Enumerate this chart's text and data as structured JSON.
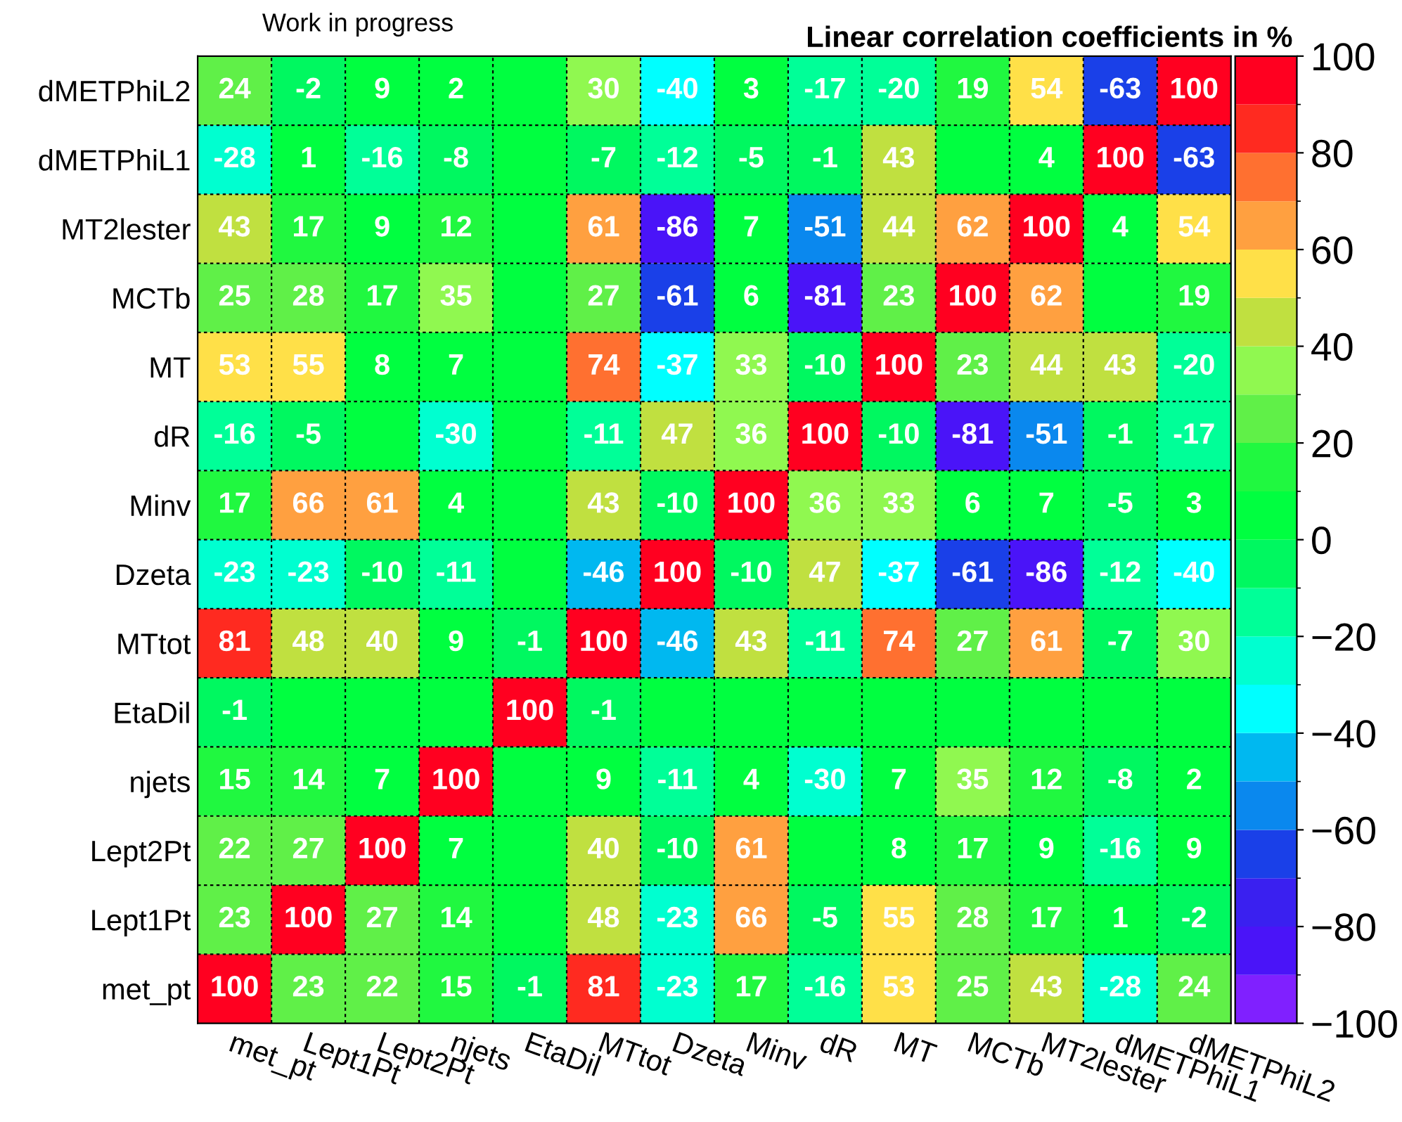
{
  "chart_data": {
    "type": "heatmap",
    "title": "Linear correlation coefficients in %",
    "annotations": [
      "Work in progress"
    ],
    "categories": [
      "met_pt",
      "Lept1Pt",
      "Lept2Pt",
      "njets",
      "EtaDil",
      "MTtot",
      "Dzeta",
      "Minv",
      "dR",
      "MT",
      "MCTb",
      "MT2lester",
      "dMETPhiL1",
      "dMETPhiL2"
    ],
    "y_categories": [
      "dMETPhiL2",
      "dMETPhiL1",
      "MT2lester",
      "MCTb",
      "MT",
      "dR",
      "Minv",
      "Dzeta",
      "MTtot",
      "EtaDil",
      "njets",
      "Lept2Pt",
      "Lept1Pt",
      "met_pt"
    ],
    "cells": [
      [
        24,
        -2,
        9,
        2,
        0,
        30,
        -40,
        3,
        -17,
        -20,
        19,
        54,
        -63,
        100
      ],
      [
        -28,
        1,
        -16,
        -8,
        0,
        -7,
        -12,
        -5,
        -1,
        43,
        0,
        4,
        100,
        -63
      ],
      [
        43,
        17,
        9,
        12,
        0,
        61,
        -86,
        7,
        -51,
        44,
        62,
        100,
        4,
        54
      ],
      [
        25,
        28,
        17,
        35,
        0,
        27,
        -61,
        6,
        -81,
        23,
        100,
        62,
        0,
        19
      ],
      [
        53,
        55,
        8,
        7,
        0,
        74,
        -37,
        33,
        -10,
        100,
        23,
        44,
        43,
        -20
      ],
      [
        -16,
        -5,
        0,
        -30,
        0,
        -11,
        47,
        36,
        100,
        -10,
        -81,
        -51,
        -1,
        -17
      ],
      [
        17,
        66,
        61,
        4,
        0,
        43,
        -10,
        100,
        36,
        33,
        6,
        7,
        -5,
        3
      ],
      [
        -23,
        -23,
        -10,
        -11,
        0,
        -46,
        100,
        -10,
        47,
        -37,
        -61,
        -86,
        -12,
        -40
      ],
      [
        81,
        48,
        40,
        9,
        -1,
        100,
        -46,
        43,
        -11,
        74,
        27,
        61,
        -7,
        30
      ],
      [
        -1,
        0,
        0,
        0,
        100,
        -1,
        0,
        0,
        0,
        0,
        0,
        0,
        0,
        0
      ],
      [
        15,
        14,
        7,
        100,
        0,
        9,
        -11,
        4,
        -30,
        7,
        35,
        12,
        -8,
        2
      ],
      [
        22,
        27,
        100,
        7,
        0,
        40,
        -10,
        61,
        0,
        8,
        17,
        9,
        -16,
        9
      ],
      [
        23,
        100,
        27,
        14,
        0,
        48,
        -23,
        66,
        -5,
        55,
        28,
        17,
        1,
        -2
      ],
      [
        100,
        23,
        22,
        15,
        -1,
        81,
        -23,
        17,
        -16,
        53,
        25,
        43,
        -28,
        24
      ]
    ],
    "cell_labels": [
      [
        "24",
        "-2",
        "9",
        "2",
        null,
        "30",
        "-40",
        "3",
        "-17",
        "-20",
        "19",
        "54",
        "-63",
        "100"
      ],
      [
        "-28",
        "1",
        "-16",
        "-8",
        null,
        "-7",
        "-12",
        "-5",
        "-1",
        "43",
        null,
        "4",
        "100",
        "-63"
      ],
      [
        "43",
        "17",
        "9",
        "12",
        null,
        "61",
        "-86",
        "7",
        "-51",
        "44",
        "62",
        "100",
        "4",
        "54"
      ],
      [
        "25",
        "28",
        "17",
        "35",
        null,
        "27",
        "-61",
        "6",
        "-81",
        "23",
        "100",
        "62",
        null,
        "19"
      ],
      [
        "53",
        "55",
        "8",
        "7",
        null,
        "74",
        "-37",
        "33",
        "-10",
        "100",
        "23",
        "44",
        "43",
        "-20"
      ],
      [
        "-16",
        "-5",
        null,
        "-30",
        null,
        "-11",
        "47",
        "36",
        "100",
        "-10",
        "-81",
        "-51",
        "-1",
        "-17"
      ],
      [
        "17",
        "66",
        "61",
        "4",
        null,
        "43",
        "-10",
        "100",
        "36",
        "33",
        "6",
        "7",
        "-5",
        "3"
      ],
      [
        "-23",
        "-23",
        "-10",
        "-11",
        null,
        "-46",
        "100",
        "-10",
        "47",
        "-37",
        "-61",
        "-86",
        "-12",
        "-40"
      ],
      [
        "81",
        "48",
        "40",
        "9",
        "-1",
        "100",
        "-46",
        "43",
        "-11",
        "74",
        "27",
        "61",
        "-7",
        "30"
      ],
      [
        "-1",
        null,
        null,
        null,
        "100",
        "-1",
        null,
        null,
        null,
        null,
        null,
        null,
        null,
        null
      ],
      [
        "15",
        "14",
        "7",
        "100",
        null,
        "9",
        "-11",
        "4",
        "-30",
        "7",
        "35",
        "12",
        "-8",
        "2"
      ],
      [
        "22",
        "27",
        "100",
        "7",
        null,
        "40",
        "-10",
        "61",
        null,
        "8",
        "17",
        "9",
        "-16",
        "9"
      ],
      [
        "23",
        "100",
        "27",
        "14",
        null,
        "48",
        "-23",
        "66",
        "-5",
        "55",
        "28",
        "17",
        "1",
        "-2"
      ],
      [
        "100",
        "23",
        "22",
        "15",
        "-1",
        "81",
        "-23",
        "17",
        "-16",
        "53",
        "25",
        "43",
        "-28",
        "24"
      ]
    ],
    "clim": [
      -100,
      100
    ],
    "cticks": [
      -100,
      -80,
      -60,
      -40,
      -20,
      0,
      20,
      40,
      60,
      80,
      100
    ],
    "grid": true
  }
}
